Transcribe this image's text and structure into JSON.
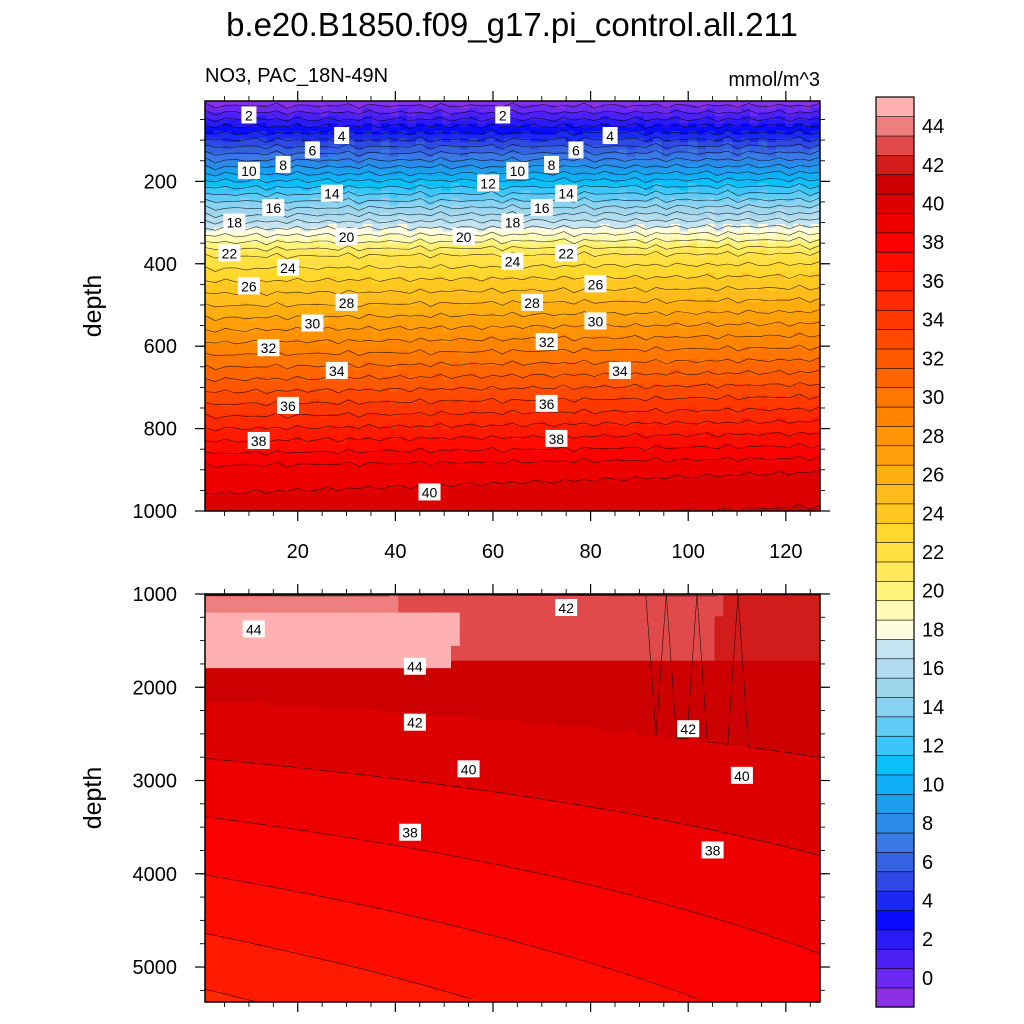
{
  "chart_data": {
    "type": "heatmap",
    "title": "b.e20.B1850.f09_g17.pi_control.all.211",
    "left_subtitle": "NO3, PAC_18N-49N",
    "right_subtitle": "mmol/m^3",
    "colorbar": {
      "min": -1,
      "max": 46,
      "labels": [
        0,
        2,
        4,
        6,
        8,
        10,
        12,
        14,
        16,
        18,
        20,
        22,
        24,
        26,
        28,
        30,
        32,
        34,
        36,
        38,
        40,
        42,
        44
      ],
      "colors": [
        "#8c30e6",
        "#6a28f0",
        "#4c20f5",
        "#2a1af8",
        "#0a0cff",
        "#1a2af0",
        "#2e48e6",
        "#3462e0",
        "#3a78e6",
        "#2a8ae8",
        "#1e9cee",
        "#0fb0f5",
        "#0ac0f8",
        "#3ac6f8",
        "#60cbf4",
        "#88d2f2",
        "#9fd6ee",
        "#b0dcee",
        "#c4e4f2",
        "#fffde0",
        "#fffcb8",
        "#fff37a",
        "#ffe85a",
        "#ffe040",
        "#ffd82e",
        "#ffc820",
        "#ffbc1a",
        "#ffae10",
        "#ffa00a",
        "#ff9205",
        "#ff8400",
        "#ff7600",
        "#ff6600",
        "#ff5800",
        "#ff4800",
        "#ff3800",
        "#ff2a00",
        "#ff1a00",
        "#ff0c00",
        "#fa0000",
        "#ee0000",
        "#dd0000",
        "#cc0000",
        "#d21c1c",
        "#e04a4a",
        "#ef7e7e",
        "#ffb0b0"
      ]
    },
    "panels": [
      {
        "name": "upper",
        "ylabel": "depth",
        "xlim": [
          1,
          127
        ],
        "ylim": [
          1000,
          5
        ],
        "x_ticks": [
          20,
          40,
          60,
          80,
          100,
          120
        ],
        "y_ticks": [
          200,
          400,
          600,
          800,
          1000
        ],
        "contour_labels": [
          {
            "text": "2",
            "x": 10,
            "y": 40
          },
          {
            "text": "2",
            "x": 62,
            "y": 40
          },
          {
            "text": "4",
            "x": 29,
            "y": 90
          },
          {
            "text": "4",
            "x": 84,
            "y": 90
          },
          {
            "text": "6",
            "x": 23,
            "y": 125
          },
          {
            "text": "6",
            "x": 77,
            "y": 125
          },
          {
            "text": "8",
            "x": 17,
            "y": 160
          },
          {
            "text": "8",
            "x": 72,
            "y": 160
          },
          {
            "text": "10",
            "x": 10,
            "y": 175
          },
          {
            "text": "10",
            "x": 65,
            "y": 175
          },
          {
            "text": "12",
            "x": 59,
            "y": 205
          },
          {
            "text": "14",
            "x": 27,
            "y": 230
          },
          {
            "text": "14",
            "x": 75,
            "y": 230
          },
          {
            "text": "16",
            "x": 15,
            "y": 265
          },
          {
            "text": "16",
            "x": 70,
            "y": 265
          },
          {
            "text": "18",
            "x": 7,
            "y": 300
          },
          {
            "text": "18",
            "x": 64,
            "y": 300
          },
          {
            "text": "20",
            "x": 30,
            "y": 335
          },
          {
            "text": "20",
            "x": 54,
            "y": 335
          },
          {
            "text": "22",
            "x": 6,
            "y": 375
          },
          {
            "text": "22",
            "x": 75,
            "y": 375
          },
          {
            "text": "24",
            "x": 18,
            "y": 410
          },
          {
            "text": "24",
            "x": 64,
            "y": 395
          },
          {
            "text": "26",
            "x": 10,
            "y": 455
          },
          {
            "text": "26",
            "x": 81,
            "y": 450
          },
          {
            "text": "28",
            "x": 30,
            "y": 495
          },
          {
            "text": "28",
            "x": 68,
            "y": 495
          },
          {
            "text": "30",
            "x": 23,
            "y": 545
          },
          {
            "text": "30",
            "x": 81,
            "y": 540
          },
          {
            "text": "32",
            "x": 14,
            "y": 605
          },
          {
            "text": "32",
            "x": 71,
            "y": 590
          },
          {
            "text": "34",
            "x": 28,
            "y": 660
          },
          {
            "text": "34",
            "x": 86,
            "y": 660
          },
          {
            "text": "36",
            "x": 18,
            "y": 745
          },
          {
            "text": "36",
            "x": 71,
            "y": 740
          },
          {
            "text": "38",
            "x": 12,
            "y": 830
          },
          {
            "text": "38",
            "x": 73,
            "y": 825
          },
          {
            "text": "40",
            "x": 47,
            "y": 955
          }
        ]
      },
      {
        "name": "lower",
        "ylabel": "depth",
        "xlim": [
          1,
          127
        ],
        "ylim": [
          5375,
          1000
        ],
        "y_ticks": [
          1000,
          2000,
          3000,
          4000,
          5000
        ],
        "contour_labels": [
          {
            "text": "42",
            "x": 75,
            "y": 1150
          },
          {
            "text": "44",
            "x": 11,
            "y": 1380
          },
          {
            "text": "44",
            "x": 44,
            "y": 1780
          },
          {
            "text": "42",
            "x": 44,
            "y": 2380
          },
          {
            "text": "42",
            "x": 100,
            "y": 2450
          },
          {
            "text": "40",
            "x": 55,
            "y": 2880
          },
          {
            "text": "40",
            "x": 111,
            "y": 2950
          },
          {
            "text": "38",
            "x": 43,
            "y": 3560
          },
          {
            "text": "38",
            "x": 105,
            "y": 3750
          }
        ]
      }
    ]
  }
}
